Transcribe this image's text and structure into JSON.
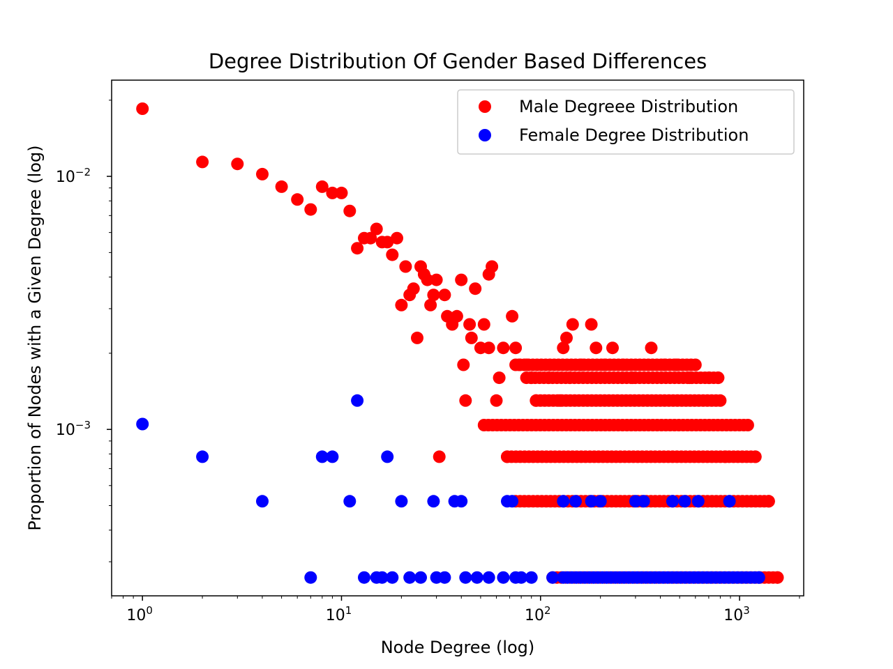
{
  "chart_data": {
    "type": "scatter",
    "title": "Degree Distribution Of Gender Based Differences",
    "xlabel": "Node Degree (log)",
    "ylabel": "Proportion of Nodes with a Given Degree (log)",
    "x_scale": "log",
    "y_scale": "log",
    "xlim": [
      0.7,
      2100
    ],
    "ylim": [
      0.00022,
      0.024
    ],
    "x_ticks": [
      1,
      10,
      100,
      1000
    ],
    "y_ticks": [
      0.001,
      0.01
    ],
    "grid": false,
    "legend_position": "top-right",
    "series": [
      {
        "name": "Male Degreee Distribution",
        "color": "#ff0000",
        "points": [
          [
            1,
            0.0185
          ],
          [
            2,
            0.0114
          ],
          [
            3,
            0.0112
          ],
          [
            4,
            0.0102
          ],
          [
            5,
            0.0091
          ],
          [
            6,
            0.0081
          ],
          [
            7,
            0.0074
          ],
          [
            8,
            0.0091
          ],
          [
            9,
            0.0086
          ],
          [
            10,
            0.0086
          ],
          [
            11,
            0.0073
          ],
          [
            12,
            0.0052
          ],
          [
            13,
            0.0057
          ],
          [
            14,
            0.0057
          ],
          [
            15,
            0.0062
          ],
          [
            16,
            0.0055
          ],
          [
            17,
            0.0055
          ],
          [
            18,
            0.0049
          ],
          [
            19,
            0.0057
          ],
          [
            20,
            0.0031
          ],
          [
            21,
            0.0044
          ],
          [
            22,
            0.0034
          ],
          [
            23,
            0.0036
          ],
          [
            24,
            0.0023
          ],
          [
            25,
            0.0044
          ],
          [
            26,
            0.0041
          ],
          [
            27,
            0.0039
          ],
          [
            28,
            0.0031
          ],
          [
            29,
            0.0034
          ],
          [
            30,
            0.0039
          ],
          [
            31,
            0.00078
          ],
          [
            33,
            0.0034
          ],
          [
            34,
            0.0028
          ],
          [
            36,
            0.0026
          ],
          [
            38,
            0.0028
          ],
          [
            40,
            0.0039
          ],
          [
            41,
            0.0018
          ],
          [
            42,
            0.0013
          ],
          [
            44,
            0.0026
          ],
          [
            45,
            0.0023
          ],
          [
            47,
            0.0036
          ],
          [
            50,
            0.0021
          ],
          [
            52,
            0.0026
          ],
          [
            55,
            0.0021
          ],
          [
            55,
            0.0041
          ],
          [
            57,
            0.0044
          ],
          [
            60,
            0.0013
          ],
          [
            62,
            0.0016
          ],
          [
            65,
            0.0021
          ],
          [
            68,
            0.00078
          ],
          [
            72,
            0.0028
          ],
          [
            75,
            0.0021
          ],
          [
            78,
            0.0018
          ],
          [
            85,
            0.0018
          ],
          [
            90,
            0.0016
          ],
          [
            95,
            0.0013
          ],
          [
            110,
            0.0016
          ],
          [
            125,
            0.0013
          ],
          [
            130,
            0.0021
          ],
          [
            135,
            0.0023
          ],
          [
            140,
            0.0016
          ],
          [
            145,
            0.0026
          ],
          [
            160,
            0.0018
          ],
          [
            180,
            0.0026
          ],
          [
            190,
            0.0021
          ],
          [
            210,
            0.0018
          ],
          [
            230,
            0.0021
          ],
          [
            260,
            0.0018
          ],
          [
            290,
            0.0016
          ],
          [
            360,
            0.0021
          ],
          [
            420,
            0.0018
          ],
          [
            480,
            0.0018
          ],
          [
            560,
            0.0016
          ],
          [
            700,
            0.0016
          ],
          [
            780,
            0.0016
          ],
          [
            850,
            0.00078
          ],
          [
            1100,
            0.00104
          ],
          [
            1200,
            0.00078
          ],
          [
            1400,
            0.00052
          ],
          [
            1550,
            0.00026
          ]
        ],
        "bands": [
          {
            "y": 0.00104,
            "x_range": [
              52,
              1050
            ]
          },
          {
            "y": 0.00078,
            "x_range": [
              68,
              1200
            ]
          },
          {
            "y": 0.00052,
            "x_range": [
              75,
              1400
            ]
          },
          {
            "y": 0.00026,
            "x_range": [
              115,
              1550
            ]
          },
          {
            "y": 0.0013,
            "x_range": [
              95,
              800
            ]
          },
          {
            "y": 0.0016,
            "x_range": [
              85,
              780
            ]
          },
          {
            "y": 0.0018,
            "x_range": [
              75,
              600
            ]
          }
        ]
      },
      {
        "name": "Female Degree Distribution",
        "color": "#0000ff",
        "points": [
          [
            1,
            0.00105
          ],
          [
            2,
            0.00078
          ],
          [
            4,
            0.00052
          ],
          [
            7,
            0.00026
          ],
          [
            8,
            0.00078
          ],
          [
            9,
            0.00078
          ],
          [
            11,
            0.00052
          ],
          [
            12,
            0.0013
          ],
          [
            13,
            0.00026
          ],
          [
            15,
            0.00026
          ],
          [
            16,
            0.00026
          ],
          [
            17,
            0.00078
          ],
          [
            18,
            0.00026
          ],
          [
            20,
            0.00052
          ],
          [
            22,
            0.00026
          ],
          [
            25,
            0.00026
          ],
          [
            29,
            0.00052
          ],
          [
            30,
            0.00026
          ],
          [
            33,
            0.00026
          ],
          [
            37,
            0.00052
          ],
          [
            40,
            0.00052
          ],
          [
            42,
            0.00026
          ],
          [
            48,
            0.00026
          ],
          [
            55,
            0.00026
          ],
          [
            65,
            0.00026
          ],
          [
            68,
            0.00052
          ],
          [
            72,
            0.00052
          ],
          [
            75,
            0.00026
          ],
          [
            80,
            0.00026
          ],
          [
            90,
            0.00026
          ],
          [
            115,
            0.00026
          ],
          [
            130,
            0.00052
          ],
          [
            150,
            0.00052
          ],
          [
            180,
            0.00052
          ],
          [
            200,
            0.00052
          ],
          [
            300,
            0.00052
          ],
          [
            330,
            0.00052
          ],
          [
            460,
            0.00052
          ],
          [
            530,
            0.00052
          ],
          [
            620,
            0.00052
          ],
          [
            890,
            0.00052
          ],
          [
            1250,
            0.00026
          ]
        ],
        "bands": [
          {
            "y": 0.00026,
            "x_range": [
              130,
              1250
            ]
          }
        ]
      }
    ]
  }
}
